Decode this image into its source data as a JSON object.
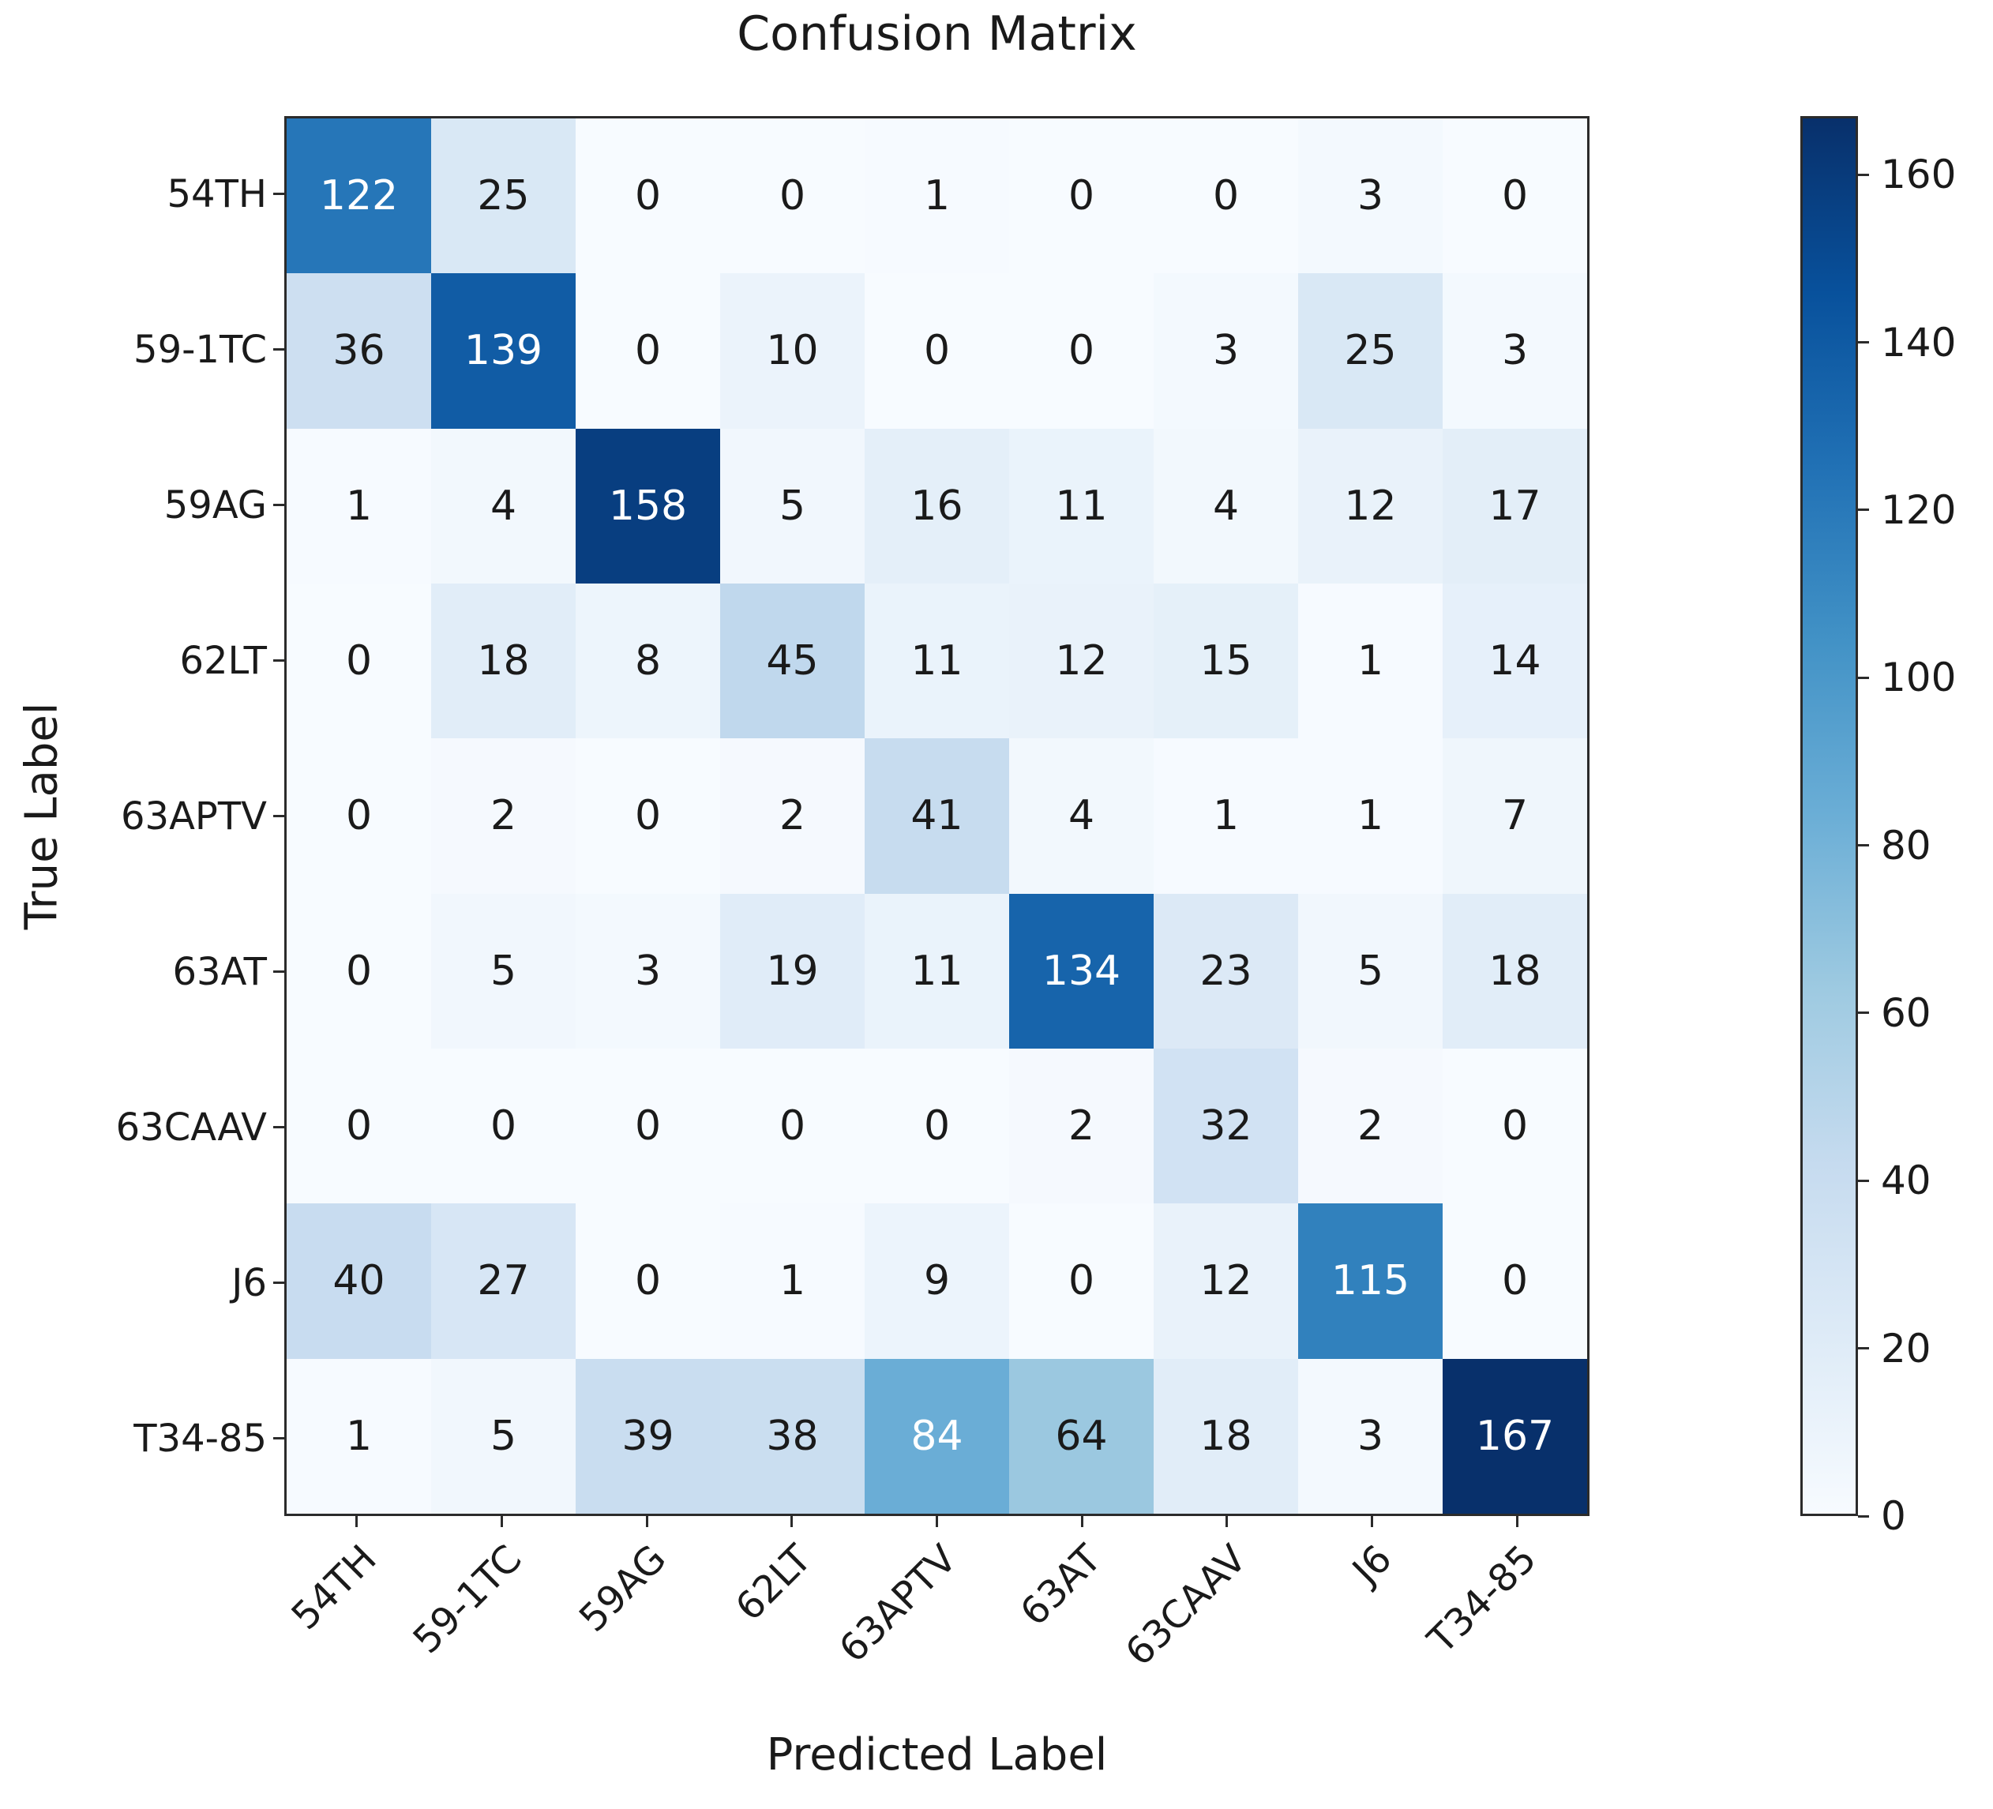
{
  "chart_data": {
    "type": "heatmap",
    "title": "Confusion Matrix",
    "xlabel": "Predicted Label",
    "ylabel": "True Label",
    "categories": [
      "54TH",
      "59-1TC",
      "59AG",
      "62LT",
      "63APTV",
      "63AT",
      "63CAAV",
      "J6",
      "T34-85"
    ],
    "matrix": [
      [
        122,
        25,
        0,
        0,
        1,
        0,
        0,
        3,
        0
      ],
      [
        36,
        139,
        0,
        10,
        0,
        0,
        3,
        25,
        3
      ],
      [
        1,
        4,
        158,
        5,
        16,
        11,
        4,
        12,
        17
      ],
      [
        0,
        18,
        8,
        45,
        11,
        12,
        15,
        1,
        14
      ],
      [
        0,
        2,
        0,
        2,
        41,
        4,
        1,
        1,
        7
      ],
      [
        0,
        5,
        3,
        19,
        11,
        134,
        23,
        5,
        18
      ],
      [
        0,
        0,
        0,
        0,
        0,
        2,
        32,
        2,
        0
      ],
      [
        40,
        27,
        0,
        1,
        9,
        0,
        12,
        115,
        0
      ],
      [
        1,
        5,
        39,
        38,
        84,
        64,
        18,
        3,
        167
      ]
    ],
    "vmin": 0,
    "vmax": 167,
    "colormap": "Blues",
    "colormap_stops": [
      "#f7fbff",
      "#deebf7",
      "#c6dbef",
      "#9ecae1",
      "#6baed6",
      "#4292c6",
      "#2171b5",
      "#08519c",
      "#08306b"
    ],
    "colorbar_ticks": [
      0,
      20,
      40,
      60,
      80,
      100,
      120,
      140,
      160
    ],
    "colorbar_position": "right",
    "grid": false,
    "axis_frame_color": "#2b2b2b",
    "cell_text_dark": "#1a1a1a",
    "cell_text_light": "#ffffff",
    "x_tick_rotation_deg": 45
  }
}
